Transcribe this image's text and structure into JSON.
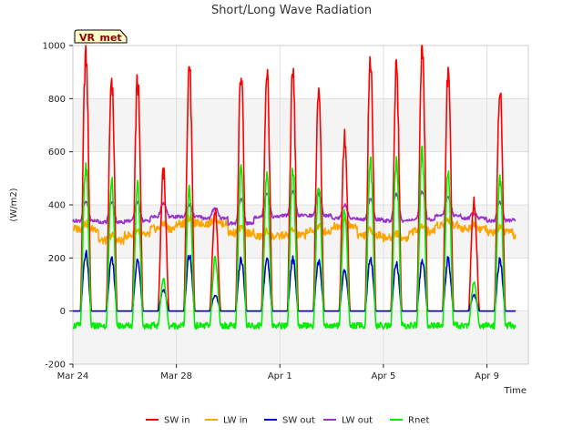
{
  "chart_data": {
    "type": "line",
    "title": "Short/Long Wave Radiation",
    "xlabel": "Time",
    "ylabel": "(W/m2)",
    "station_badge": "VR_met",
    "ylim": [
      -200,
      1000
    ],
    "yticks": [
      -200,
      0,
      200,
      400,
      600,
      800,
      1000
    ],
    "xlim": [
      0,
      17.6
    ],
    "x_unit": "days since Mar 24",
    "xticks": [
      {
        "value": 0,
        "label": "Mar 24"
      },
      {
        "value": 4,
        "label": "Mar 28"
      },
      {
        "value": 8,
        "label": "Apr 1"
      },
      {
        "value": 12,
        "label": "Apr 5"
      },
      {
        "value": 16,
        "label": "Apr 9"
      }
    ],
    "legend_position": "bottom",
    "grid": true,
    "days": [
      0,
      1,
      2,
      3,
      4,
      5,
      6,
      7,
      8,
      9,
      10,
      11,
      12,
      13,
      14,
      15,
      16,
      17
    ],
    "series": [
      {
        "name": "SW in",
        "color": "#ff0000",
        "daily_peak": [
          970,
          880,
          865,
          520,
          930,
          380,
          910,
          905,
          900,
          850,
          650,
          950,
          905,
          990,
          890,
          410,
          850,
          0
        ],
        "baseline": 0
      },
      {
        "name": "LW in",
        "color": "#ffa500",
        "daily_mean": [
          310,
          265,
          285,
          310,
          330,
          330,
          295,
          280,
          285,
          300,
          320,
          285,
          275,
          300,
          325,
          310,
          295,
          285
        ]
      },
      {
        "name": "SW out",
        "color": "#0000cc",
        "daily_peak": [
          220,
          195,
          190,
          80,
          210,
          60,
          195,
          195,
          195,
          190,
          150,
          200,
          180,
          190,
          195,
          60,
          190,
          0
        ],
        "baseline": 0
      },
      {
        "name": "LW out",
        "color": "#9932cc",
        "daily_min": [
          340,
          335,
          340,
          355,
          355,
          350,
          330,
          355,
          360,
          360,
          350,
          345,
          340,
          345,
          360,
          350,
          340,
          345
        ],
        "daily_peak": [
          410,
          410,
          410,
          405,
          400,
          390,
          420,
          445,
          450,
          440,
          400,
          420,
          440,
          450,
          430,
          370,
          410,
          345
        ]
      },
      {
        "name": "Rnet",
        "color": "#00ee00",
        "daily_peak": [
          550,
          490,
          470,
          120,
          470,
          200,
          530,
          500,
          520,
          470,
          380,
          560,
          560,
          600,
          520,
          110,
          510,
          0
        ],
        "night": -55
      }
    ]
  }
}
